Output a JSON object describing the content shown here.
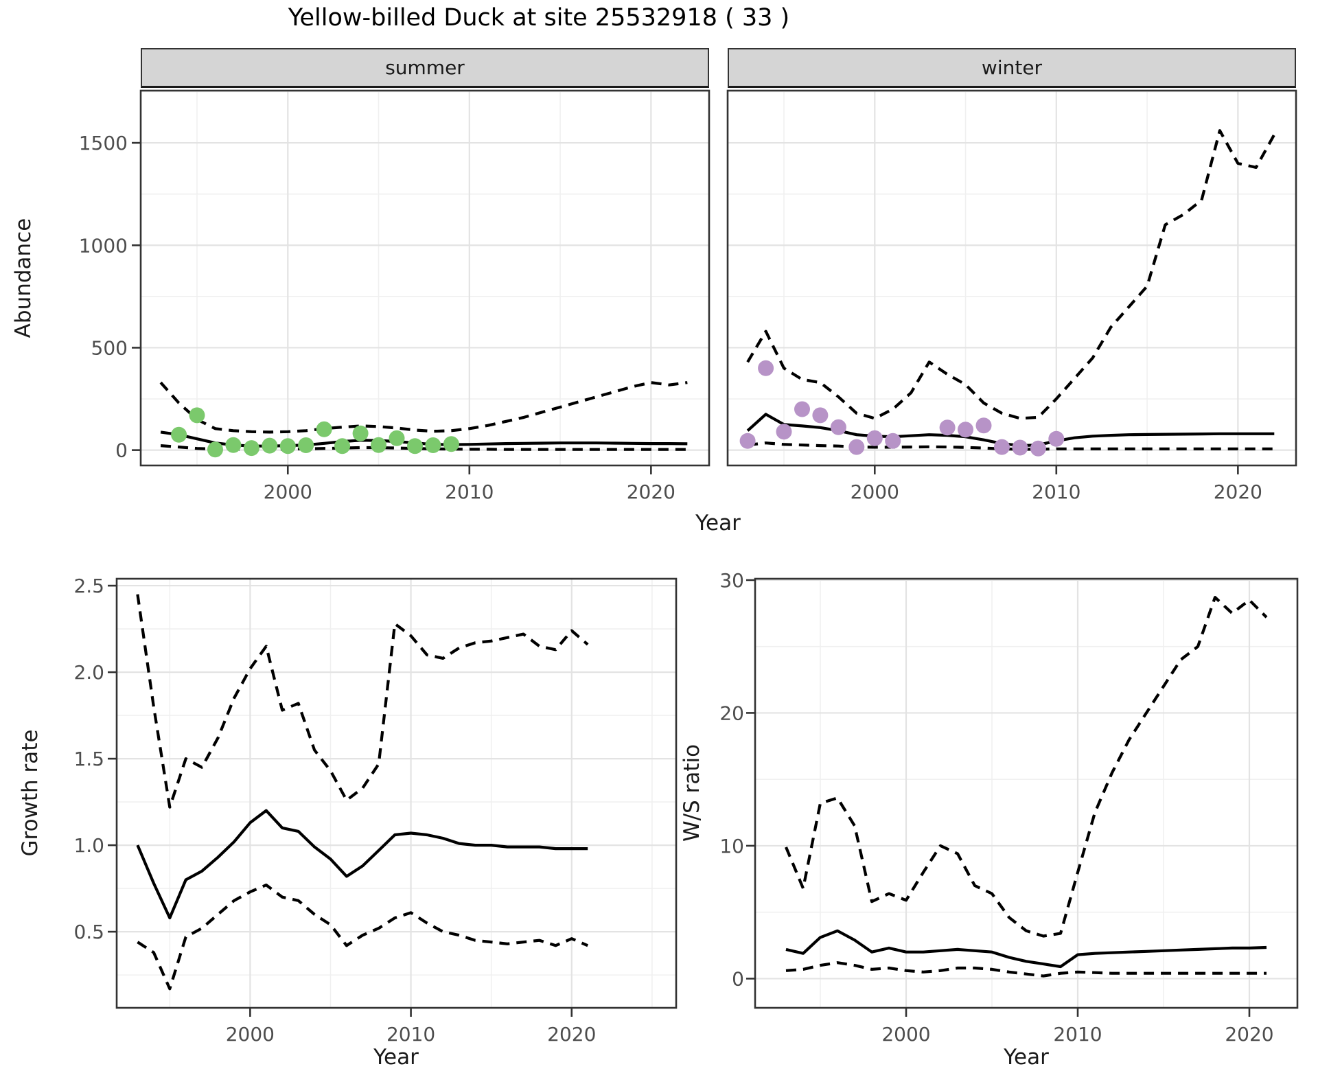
{
  "title": "Yellow-billed Duck at site 25532918 ( 33 )",
  "facets": [
    {
      "label": "summer"
    },
    {
      "label": "winter"
    }
  ],
  "axis_titles": {
    "abundance": "Abundance",
    "year_top": "Year",
    "growth": "Growth rate",
    "year_bottom_left": "Year",
    "ws_ratio": "W/S ratio",
    "year_bottom_right": "Year"
  },
  "colors": {
    "summer_points": "#7bc96c",
    "winter_points": "#b793c7",
    "fit_line": "#000000",
    "ci_line": "#000000",
    "strip_bg": "#d5d5d5",
    "panel_border": "#333333",
    "grid_major": "#e3e3e3",
    "grid_minor": "#f0f0f0",
    "tick_text": "#4d4d4d",
    "tick_mark": "#333333"
  },
  "chart_data": [
    {
      "id": "abundance-summer",
      "type": "line",
      "facet": "summer",
      "xlabel": "Year",
      "ylabel": "Abundance",
      "xlim": [
        1991.9,
        2023.2
      ],
      "ylim": [
        -75,
        1755
      ],
      "xticks": [
        2000,
        2010,
        2020
      ],
      "xminor": [
        1995,
        2005,
        2015
      ],
      "yticks": [
        0,
        500,
        1000,
        1500
      ],
      "yminor": [
        250,
        750,
        1250,
        1750
      ],
      "show_y_labels": true,
      "x": [
        1993,
        1994,
        1995,
        1996,
        1997,
        1998,
        1999,
        2000,
        2001,
        2002,
        2003,
        2004,
        2005,
        2006,
        2007,
        2008,
        2009,
        2010,
        2011,
        2012,
        2013,
        2014,
        2015,
        2016,
        2017,
        2018,
        2019,
        2020,
        2021,
        2022
      ],
      "series": [
        {
          "name": "estimate",
          "style": "solid",
          "y": [
            88,
            75,
            55,
            35,
            25,
            20,
            20,
            22,
            25,
            33,
            42,
            48,
            47,
            42,
            35,
            28,
            27,
            28,
            30,
            32,
            33,
            34,
            35,
            35,
            35,
            34,
            33,
            32,
            32,
            31
          ]
        },
        {
          "name": "upper-ci",
          "style": "dashed",
          "y": [
            330,
            230,
            150,
            105,
            95,
            90,
            88,
            90,
            95,
            105,
            112,
            118,
            115,
            108,
            98,
            92,
            95,
            105,
            120,
            140,
            160,
            185,
            210,
            235,
            260,
            285,
            310,
            330,
            318,
            330
          ]
        },
        {
          "name": "lower-ci",
          "style": "dashed",
          "y": [
            22,
            15,
            8,
            5,
            4,
            4,
            4,
            5,
            6,
            8,
            10,
            12,
            12,
            10,
            8,
            6,
            5,
            4,
            4,
            3,
            3,
            3,
            3,
            3,
            3,
            3,
            3,
            3,
            3,
            3
          ]
        }
      ],
      "points": {
        "name": "observed-summer-counts",
        "color": "#7bc96c",
        "x": [
          1994,
          1995,
          1996,
          1997,
          1998,
          1999,
          2000,
          2001,
          2002,
          2003,
          2004,
          2005,
          2006,
          2007,
          2008,
          2009
        ],
        "y": [
          75,
          170,
          3,
          25,
          10,
          22,
          20,
          24,
          102,
          20,
          82,
          25,
          58,
          20,
          24,
          30
        ]
      }
    },
    {
      "id": "abundance-winter",
      "type": "line",
      "facet": "winter",
      "xlabel": "Year",
      "ylabel": "Abundance",
      "xlim": [
        1991.9,
        2023.2
      ],
      "ylim": [
        -75,
        1755
      ],
      "xticks": [
        2000,
        2010,
        2020
      ],
      "xminor": [
        1995,
        2005,
        2015
      ],
      "yticks": [
        0,
        500,
        1000,
        1500
      ],
      "yminor": [
        250,
        750,
        1250,
        1750
      ],
      "show_y_labels": false,
      "x": [
        1993,
        1994,
        1995,
        1996,
        1997,
        1998,
        1999,
        2000,
        2001,
        2002,
        2003,
        2004,
        2005,
        2006,
        2007,
        2008,
        2009,
        2010,
        2011,
        2012,
        2013,
        2014,
        2015,
        2016,
        2017,
        2018,
        2019,
        2020,
        2021,
        2022
      ],
      "series": [
        {
          "name": "estimate",
          "style": "solid",
          "y": [
            95,
            175,
            125,
            118,
            110,
            95,
            75,
            68,
            65,
            70,
            75,
            72,
            65,
            50,
            32,
            22,
            25,
            45,
            60,
            68,
            72,
            75,
            76,
            77,
            78,
            79,
            80,
            80,
            80,
            80
          ]
        },
        {
          "name": "upper-ci",
          "style": "dashed",
          "y": [
            430,
            580,
            400,
            345,
            330,
            260,
            180,
            155,
            200,
            280,
            430,
            370,
            320,
            230,
            180,
            155,
            160,
            250,
            350,
            450,
            600,
            700,
            800,
            1100,
            1150,
            1220,
            1560,
            1400,
            1380,
            1540
          ]
        },
        {
          "name": "lower-ci",
          "style": "dashed",
          "y": [
            25,
            35,
            28,
            25,
            22,
            20,
            15,
            14,
            14,
            15,
            16,
            15,
            13,
            10,
            6,
            4,
            4,
            6,
            6,
            6,
            6,
            6,
            6,
            6,
            6,
            6,
            6,
            6,
            6,
            6
          ]
        }
      ],
      "points": {
        "name": "observed-winter-counts",
        "color": "#b793c7",
        "x": [
          1993,
          1994,
          1995,
          1996,
          1997,
          1998,
          1999,
          2000,
          2001,
          2004,
          2005,
          2006,
          2007,
          2008,
          2009,
          2010
        ],
        "y": [
          45,
          400,
          90,
          200,
          170,
          112,
          15,
          58,
          45,
          110,
          100,
          120,
          15,
          12,
          8,
          55
        ]
      }
    },
    {
      "id": "growth-rate",
      "type": "line",
      "facet": null,
      "xlabel": "Year",
      "ylabel": "Growth rate",
      "xlim": [
        1991.7,
        2026.5
      ],
      "ylim": [
        0.06,
        2.54
      ],
      "xticks": [
        2000,
        2010,
        2020
      ],
      "xminor": [
        1995,
        2005,
        2015,
        2025
      ],
      "yticks": [
        0.5,
        1.0,
        1.5,
        2.0,
        2.5
      ],
      "ytick_labels": [
        "0.5",
        "1.0",
        "1.5",
        "2.0",
        "2.5"
      ],
      "yminor": [
        0.25,
        0.75,
        1.25,
        1.75,
        2.25
      ],
      "show_y_labels": true,
      "x": [
        1993,
        1994,
        1995,
        1996,
        1997,
        1998,
        1999,
        2000,
        2001,
        2002,
        2003,
        2004,
        2005,
        2006,
        2007,
        2008,
        2009,
        2010,
        2011,
        2012,
        2013,
        2014,
        2015,
        2016,
        2017,
        2018,
        2019,
        2020,
        2021
      ],
      "series": [
        {
          "name": "estimate",
          "style": "solid",
          "y": [
            1.0,
            0.78,
            0.58,
            0.8,
            0.85,
            0.93,
            1.02,
            1.13,
            1.2,
            1.1,
            1.08,
            0.99,
            0.92,
            0.82,
            0.88,
            0.97,
            1.06,
            1.07,
            1.06,
            1.04,
            1.01,
            1.0,
            1.0,
            0.99,
            0.99,
            0.99,
            0.98,
            0.98,
            0.98
          ]
        },
        {
          "name": "upper-ci",
          "style": "dashed",
          "y": [
            2.45,
            1.8,
            1.22,
            1.5,
            1.45,
            1.62,
            1.85,
            2.02,
            2.15,
            1.78,
            1.82,
            1.55,
            1.43,
            1.26,
            1.33,
            1.47,
            2.28,
            2.21,
            2.1,
            2.08,
            2.14,
            2.17,
            2.18,
            2.2,
            2.22,
            2.15,
            2.13,
            2.24,
            2.16
          ]
        },
        {
          "name": "lower-ci",
          "style": "dashed",
          "y": [
            0.44,
            0.38,
            0.17,
            0.47,
            0.52,
            0.6,
            0.68,
            0.73,
            0.77,
            0.7,
            0.68,
            0.6,
            0.54,
            0.42,
            0.48,
            0.52,
            0.58,
            0.61,
            0.55,
            0.5,
            0.48,
            0.45,
            0.44,
            0.43,
            0.44,
            0.45,
            0.42,
            0.46,
            0.42
          ]
        }
      ],
      "points": null
    },
    {
      "id": "ws-ratio",
      "type": "line",
      "facet": null,
      "xlabel": "Year",
      "ylabel": "W/S ratio",
      "xlim": [
        1991.2,
        2022.8
      ],
      "ylim": [
        -2.2,
        30.1
      ],
      "xticks": [
        2000,
        2010,
        2020
      ],
      "xminor": [
        1995,
        2005,
        2015
      ],
      "yticks": [
        0,
        10,
        20,
        30
      ],
      "yminor": [
        5,
        15,
        25
      ],
      "show_y_labels": true,
      "x": [
        1993,
        1994,
        1995,
        1996,
        1997,
        1998,
        1999,
        2000,
        2001,
        2002,
        2003,
        2004,
        2005,
        2006,
        2007,
        2008,
        2009,
        2010,
        2011,
        2012,
        2013,
        2014,
        2015,
        2016,
        2017,
        2018,
        2019,
        2020,
        2021
      ],
      "series": [
        {
          "name": "estimate",
          "style": "solid",
          "y": [
            2.2,
            1.9,
            3.1,
            3.6,
            2.9,
            2.0,
            2.3,
            2.0,
            2.0,
            2.1,
            2.2,
            2.1,
            2.0,
            1.6,
            1.3,
            1.1,
            0.9,
            1.8,
            1.9,
            1.95,
            2.0,
            2.05,
            2.1,
            2.15,
            2.2,
            2.25,
            2.3,
            2.3,
            2.35
          ]
        },
        {
          "name": "upper-ci",
          "style": "dashed",
          "y": [
            9.9,
            6.8,
            13.2,
            13.6,
            11.5,
            5.8,
            6.4,
            5.9,
            8.0,
            10.0,
            9.4,
            7.0,
            6.4,
            4.6,
            3.6,
            3.2,
            3.4,
            8.0,
            12.5,
            15.5,
            18.0,
            20.0,
            22.0,
            24.0,
            25.0,
            28.7,
            27.5,
            28.5,
            27.2
          ]
        },
        {
          "name": "lower-ci",
          "style": "dashed",
          "y": [
            0.6,
            0.7,
            1.0,
            1.2,
            1.0,
            0.7,
            0.8,
            0.6,
            0.5,
            0.6,
            0.8,
            0.8,
            0.7,
            0.5,
            0.35,
            0.2,
            0.4,
            0.5,
            0.45,
            0.4,
            0.4,
            0.4,
            0.4,
            0.4,
            0.4,
            0.4,
            0.4,
            0.4,
            0.4
          ]
        }
      ],
      "points": null
    }
  ]
}
